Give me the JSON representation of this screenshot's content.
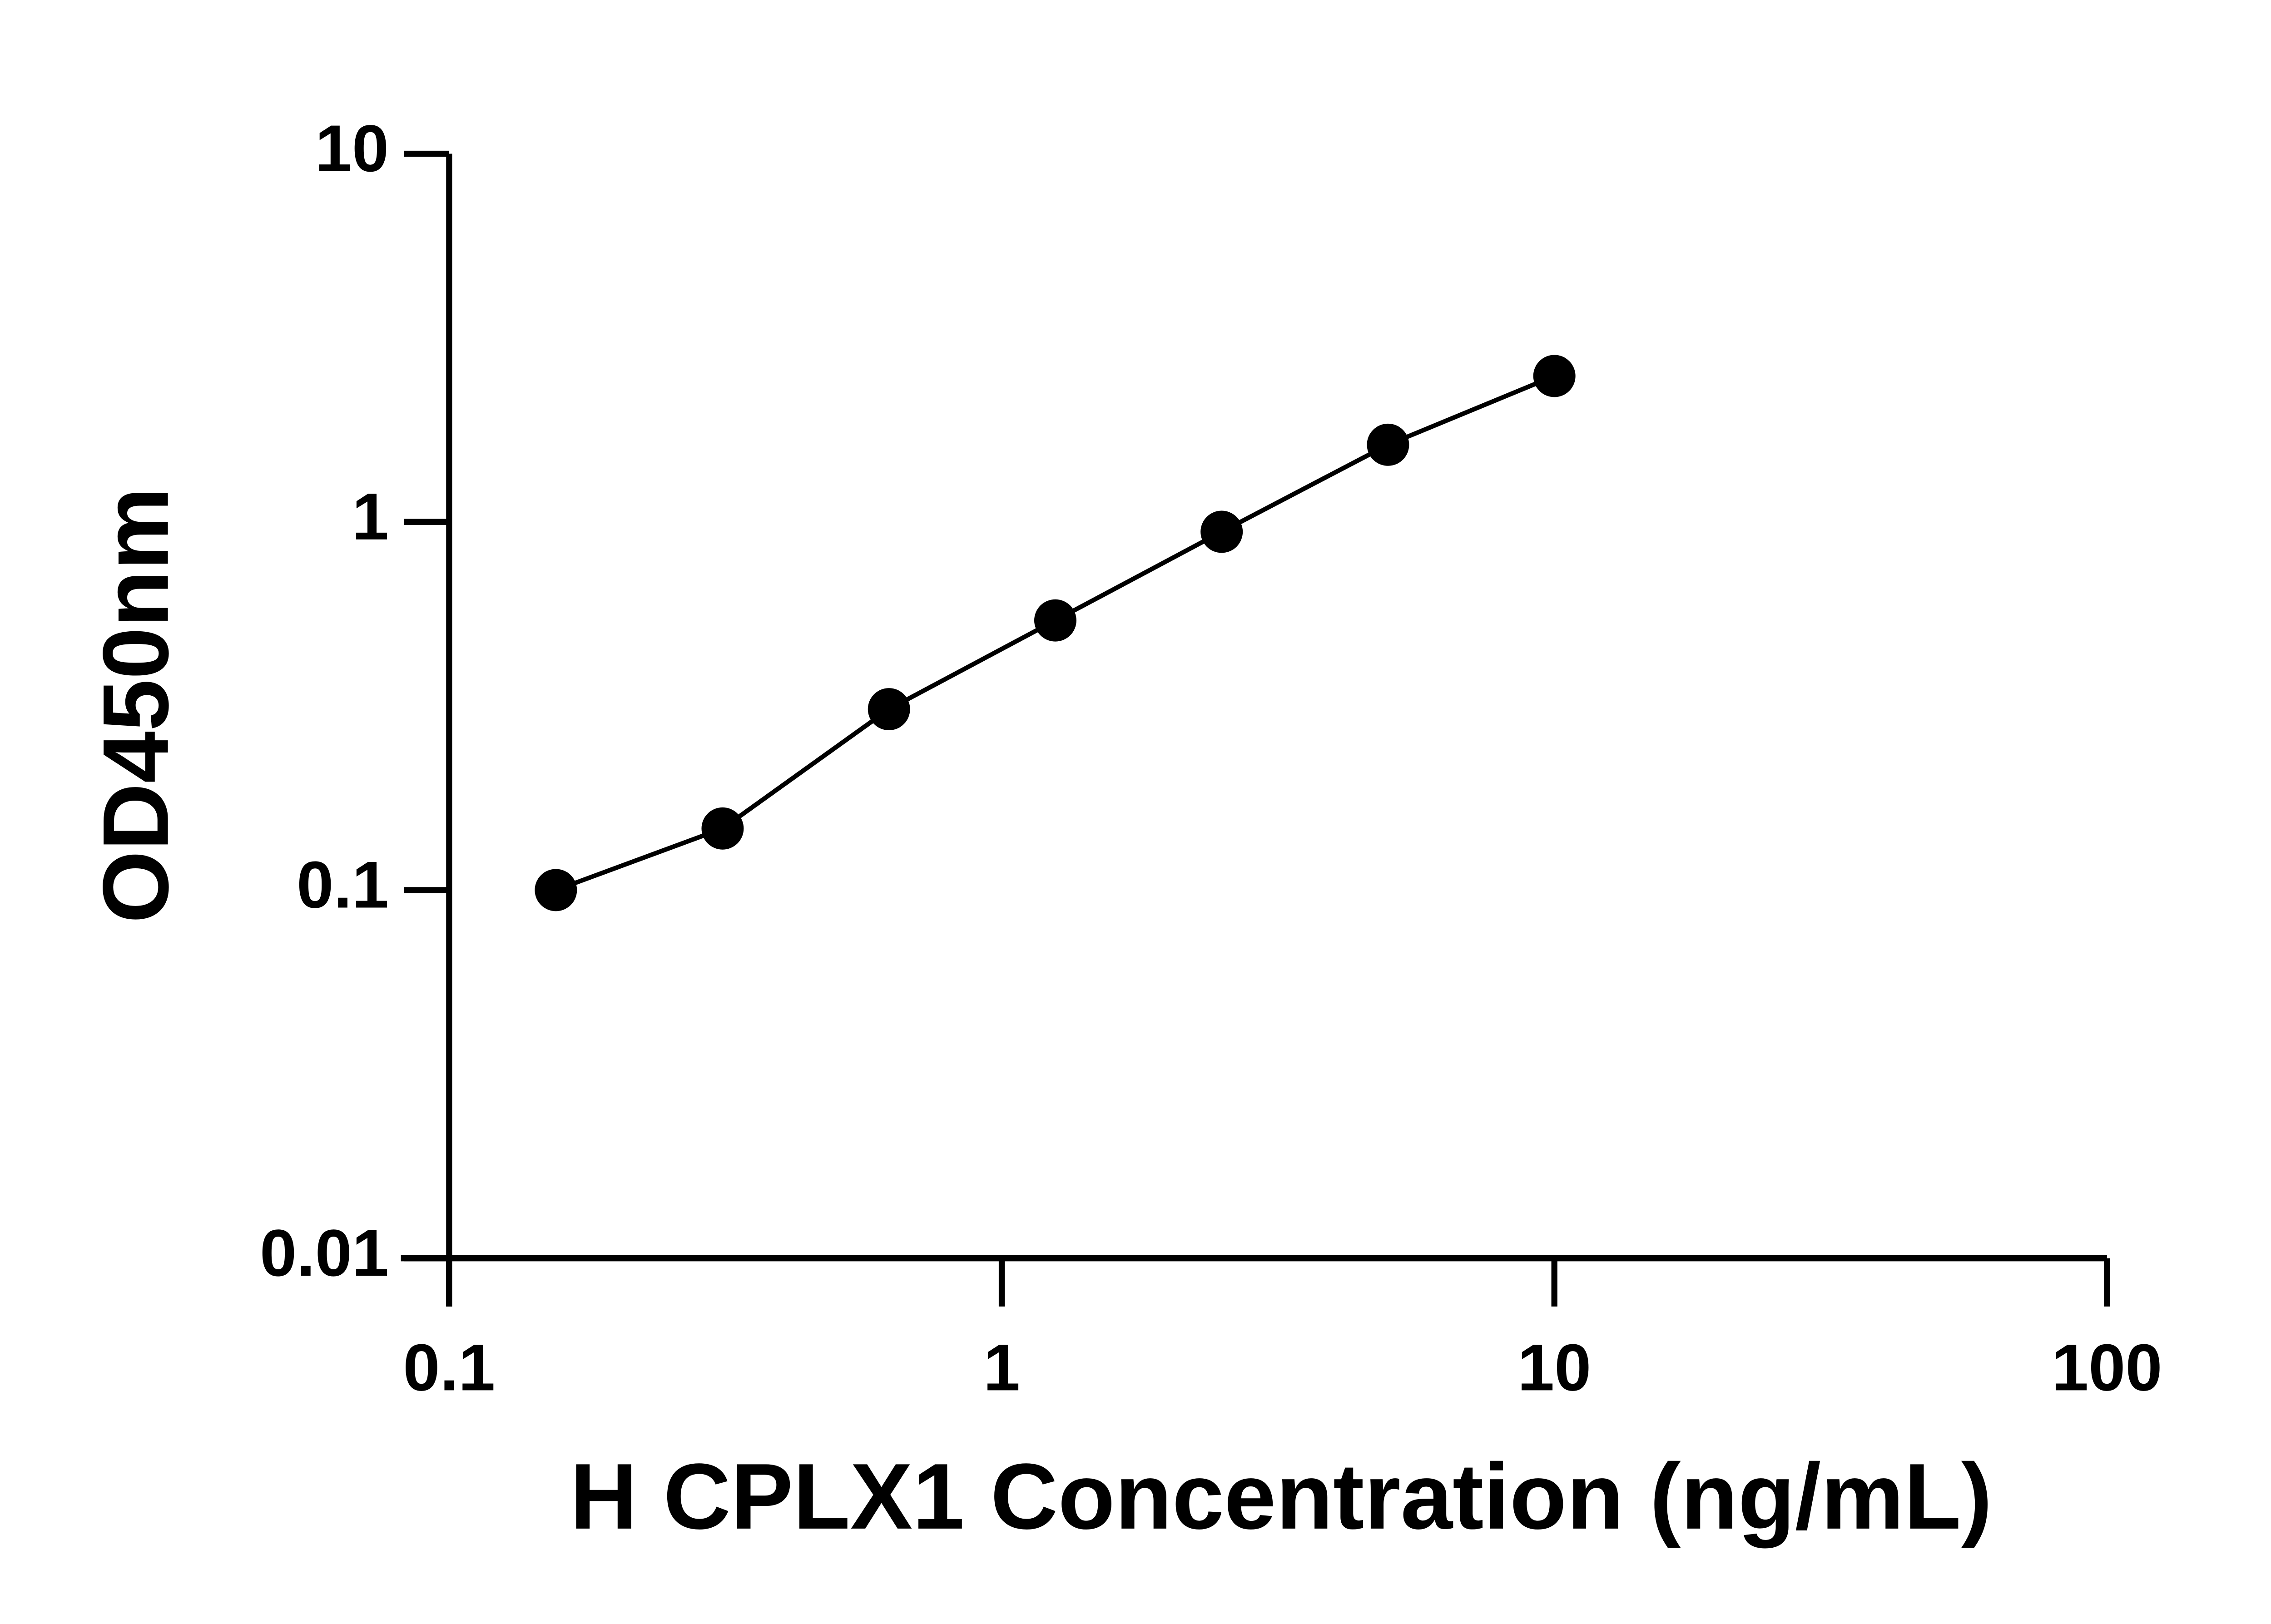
{
  "chart_data": {
    "type": "scatter",
    "x_label": "H CPLX1 Concentration (ng/mL)",
    "y_label": "OD450nm",
    "x": [
      0.156,
      0.3125,
      0.625,
      1.25,
      2.5,
      5,
      10
    ],
    "series": [
      {
        "color": "#000000",
        "values": [
          0.1,
          0.147,
          0.31,
          0.54,
          0.94,
          1.62,
          2.49
        ]
      }
    ],
    "xlim": [
      0.1,
      100
    ],
    "xticks": [
      0.1,
      1,
      10,
      100
    ],
    "ylim": [
      0.01,
      10
    ],
    "yticks": [
      0.01,
      0.1,
      1,
      10
    ],
    "xscale": "log",
    "yscale": "log",
    "grid": false
  }
}
